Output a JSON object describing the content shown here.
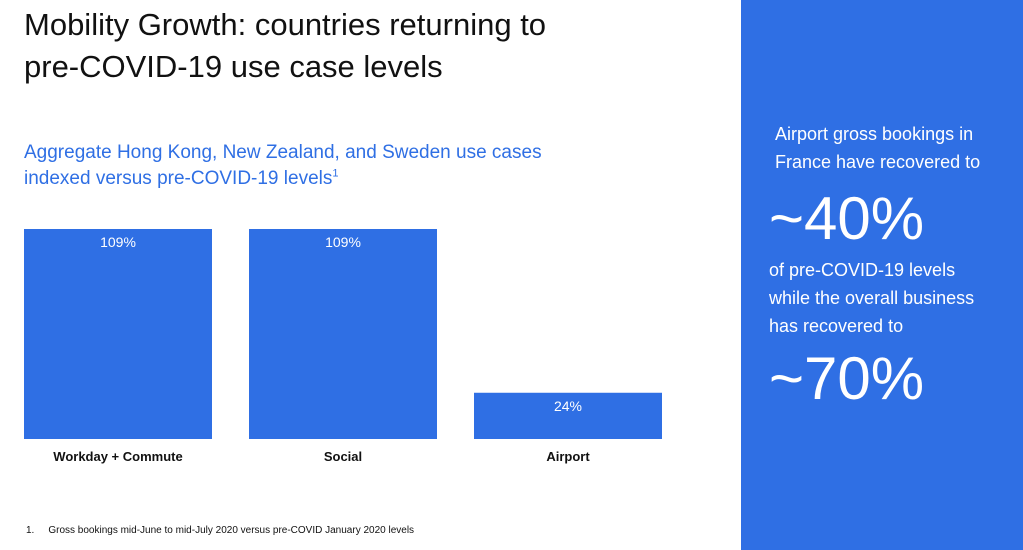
{
  "header": {
    "title_line1": "Mobility Growth: countries returning to",
    "title_line2": "pre-COVID-19 use case levels"
  },
  "chart_data": {
    "type": "bar",
    "title_line1": "Aggregate Hong Kong, New Zealand, and Sweden use cases",
    "title_line2": "indexed versus pre-COVID-19 levels",
    "title_sup": "1",
    "categories": [
      "Workday + Commute",
      "Social",
      "Airport"
    ],
    "values": [
      109,
      109,
      24
    ],
    "data_labels": [
      "109%",
      "109%",
      "24%"
    ],
    "ylim": [
      0,
      109
    ],
    "color": "#2f6fe4"
  },
  "footnote": {
    "number": "1.",
    "text": "Gross bookings mid-June to mid-July 2020 versus pre-COVID January 2020 levels"
  },
  "callout": {
    "line1": "Airport gross bookings in",
    "line2": "France have recovered to",
    "stat1": "~40%",
    "line3": "of pre-COVID-19 levels",
    "line4": "while the overall business",
    "line5": "has recovered to",
    "stat2": "~70%",
    "bg_color": "#2f6fe4"
  }
}
